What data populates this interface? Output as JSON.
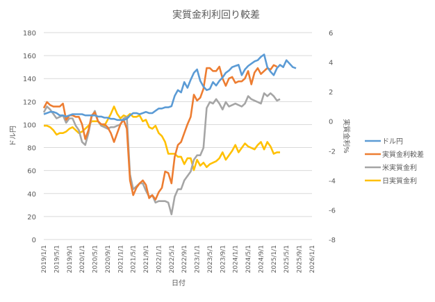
{
  "chart_data": {
    "type": "line",
    "title": "実質金利利回り較差",
    "xlabel": "日付",
    "ylabel": "ドル円",
    "y2label": "実質金利%",
    "ylim": [
      0,
      180
    ],
    "y2lim": [
      -8,
      6
    ],
    "yticks": [
      "180",
      "160",
      "140",
      "120",
      "100",
      "80",
      "60",
      "40",
      "20",
      "0"
    ],
    "y2ticks": [
      "6",
      "4",
      "2",
      "0",
      "-2",
      "-4",
      "-6",
      "-8"
    ],
    "xticks": [
      "2019/1/1",
      "2019/5/1",
      "2019/9/1",
      "2020/1/1",
      "2020/5/1",
      "2020/9/1",
      "2021/1/1",
      "2021/5/1",
      "2021/9/1",
      "2022/1/1",
      "2022/5/1",
      "2022/9/1",
      "2023/1/1",
      "2023/5/1",
      "2023/9/1",
      "2024/1/1",
      "2024/5/1",
      "2024/9/1",
      "2025/1/1",
      "2025/5/1",
      "2025/9/1",
      "2026/1/1"
    ],
    "grid": true,
    "legend_position": "right",
    "series": [
      {
        "name": "ドル円",
        "axis": "left",
        "color": "#5B9BD5",
        "values": [
          109,
          110,
          111,
          111,
          110,
          108,
          108,
          107,
          108,
          109,
          109,
          109,
          109,
          108,
          108,
          108,
          108,
          107,
          107,
          106,
          106,
          105,
          105,
          104,
          104,
          104,
          105,
          108,
          110,
          110,
          109,
          110,
          111,
          110,
          110,
          112,
          114,
          114,
          115,
          115,
          116,
          125,
          130,
          128,
          137,
          132,
          139,
          145,
          148,
          138,
          133,
          130,
          131,
          137,
          134,
          138,
          141,
          145,
          147,
          150,
          151,
          152,
          143,
          148,
          151,
          153,
          155,
          156,
          159,
          161,
          150,
          146,
          143,
          149,
          152,
          150,
          156,
          153,
          150,
          149
        ],
        "start": "2019/1/1",
        "frequency": "monthly"
      },
      {
        "name": "実質金利較差",
        "axis": "right",
        "color": "#ED7D31",
        "values": [
          0.9,
          1.3,
          1.1,
          1.0,
          1.0,
          1.0,
          1.2,
          0.1,
          0.4,
          0.4,
          0.3,
          0.3,
          -0.2,
          -1.2,
          -0.6,
          0.4,
          0.6,
          0.0,
          -0.2,
          -0.2,
          -0.4,
          -0.8,
          -1.4,
          -0.8,
          -0.2,
          0.1,
          -0.5,
          -4.0,
          -5.0,
          -4.5,
          -4.2,
          -4.0,
          -4.3,
          -5.2,
          -5.0,
          -5.3,
          -4.8,
          -4.5,
          -3.4,
          -3.5,
          -4.2,
          -2.4,
          -1.6,
          -1.4,
          -0.8,
          -0.2,
          0.3,
          1.8,
          1.4,
          1.6,
          2.2,
          3.6,
          3.6,
          3.4,
          3.4,
          3.7,
          2.9,
          2.4,
          2.9,
          3.0,
          2.6,
          2.7,
          2.7,
          2.9,
          3.4,
          2.5,
          3.3,
          3.6,
          3.2,
          3.4,
          3.6,
          3.5,
          3.8,
          3.7
        ],
        "start": "2019/1/1",
        "frequency": "monthly"
      },
      {
        "name": "米実質金利",
        "axis": "right",
        "color": "#A5A5A5",
        "values": [
          0.6,
          1.0,
          0.8,
          0.5,
          0.2,
          0.3,
          0.4,
          -0.1,
          0.2,
          0.2,
          -0.3,
          -0.6,
          -1.4,
          -1.6,
          -0.8,
          0.3,
          0.7,
          0.0,
          -0.3,
          -0.4,
          -0.5,
          -0.4,
          -0.4,
          -0.3,
          -0.2,
          0.2,
          0.3,
          -3.6,
          -4.6,
          -4.4,
          -4.2,
          -4.2,
          -4.7,
          -5.1,
          -5.0,
          -5.5,
          -5.4,
          -5.4,
          -5.4,
          -5.5,
          -6.3,
          -5.1,
          -4.6,
          -4.6,
          -4.0,
          -3.7,
          -3.4,
          -2.6,
          -2.3,
          -2.3,
          -1.8,
          0.9,
          1.3,
          1.2,
          1.5,
          1.2,
          0.8,
          1.3,
          1.0,
          1.1,
          1.2,
          1.1,
          1.0,
          1.2,
          1.7,
          1.5,
          1.4,
          1.3,
          1.2,
          1.9,
          1.7,
          1.9,
          1.7,
          1.4,
          1.5
        ],
        "start": "2019/1/1",
        "frequency": "monthly"
      },
      {
        "name": "日実質金利",
        "axis": "right",
        "color": "#FFC000",
        "values": [
          -0.3,
          -0.3,
          -0.4,
          -0.6,
          -0.9,
          -0.8,
          -0.8,
          -0.7,
          -0.5,
          -0.4,
          -0.6,
          -0.8,
          -0.7,
          -0.5,
          -0.3,
          0.0,
          0.0,
          0.0,
          -0.3,
          -0.3,
          0.1,
          0.5,
          1.0,
          0.5,
          0.2,
          0.4,
          0.3,
          0.5,
          0.3,
          0.3,
          0.4,
          0.0,
          0.1,
          -0.4,
          -0.5,
          -0.3,
          -0.8,
          -1.0,
          -1.4,
          -2.2,
          -2.2,
          -2.2,
          -2.4,
          -2.4,
          -2.9,
          -2.5,
          -2.5,
          -3.3,
          -2.6,
          -3.0,
          -2.8,
          -3.1,
          -2.9,
          -2.8,
          -2.7,
          -2.5,
          -2.1,
          -2.6,
          -2.3,
          -2.0,
          -1.6,
          -2.1,
          -1.8,
          -1.5,
          -1.7,
          -1.8,
          -1.9,
          -1.6,
          -1.4,
          -1.9,
          -1.4,
          -1.7,
          -2.2,
          -2.1,
          -2.1
        ],
        "start": "2019/1/1",
        "frequency": "monthly"
      }
    ]
  },
  "ui": {
    "title": "実質金利利回り較差",
    "xlabel": "日付",
    "ylabel": "ドル円",
    "y2label": "実質金利%",
    "legend": [
      {
        "label": "ドル円",
        "color": "#5B9BD5"
      },
      {
        "label": "実質金利較差",
        "color": "#ED7D31"
      },
      {
        "label": "米実質金利",
        "color": "#A5A5A5"
      },
      {
        "label": "日実質金利",
        "color": "#FFC000"
      }
    ]
  }
}
